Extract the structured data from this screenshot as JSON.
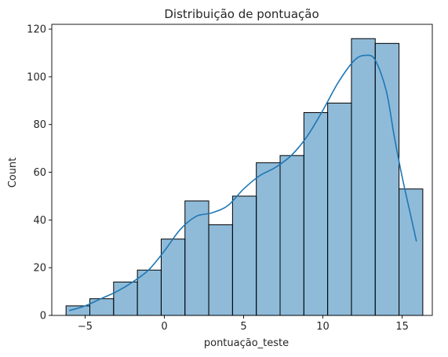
{
  "chart_data": {
    "type": "bar",
    "title": "Distribuição de pontuação",
    "xlabel": "pontuação_teste",
    "ylabel": "Count",
    "xlim": [
      -7.1,
      16.9
    ],
    "ylim": [
      0,
      122
    ],
    "xticks": [
      -5,
      0,
      5,
      10,
      15
    ],
    "yticks": [
      0,
      20,
      40,
      60,
      80,
      100,
      120
    ],
    "grid": false,
    "bar_color": "#1f77b4",
    "kde_color": "#1f77b4",
    "bins": [
      {
        "x0": -6.2,
        "x1": -4.7,
        "count": 4
      },
      {
        "x0": -4.7,
        "x1": -3.2,
        "count": 7
      },
      {
        "x0": -3.2,
        "x1": -1.7,
        "count": 14
      },
      {
        "x0": -1.7,
        "x1": -0.2,
        "count": 19
      },
      {
        "x0": -0.2,
        "x1": 1.3,
        "count": 32
      },
      {
        "x0": 1.3,
        "x1": 2.8,
        "count": 48
      },
      {
        "x0": 2.8,
        "x1": 4.3,
        "count": 38
      },
      {
        "x0": 4.3,
        "x1": 5.8,
        "count": 50
      },
      {
        "x0": 5.8,
        "x1": 7.3,
        "count": 64
      },
      {
        "x0": 7.3,
        "x1": 8.8,
        "count": 67
      },
      {
        "x0": 8.8,
        "x1": 10.3,
        "count": 85
      },
      {
        "x0": 10.3,
        "x1": 11.8,
        "count": 89
      },
      {
        "x0": 11.8,
        "x1": 13.3,
        "count": 116
      },
      {
        "x0": 13.3,
        "x1": 14.8,
        "count": 114
      },
      {
        "x0": 14.8,
        "x1": 16.3,
        "count": 53
      }
    ],
    "kde": [
      [
        -6.0,
        2
      ],
      [
        -5.0,
        4
      ],
      [
        -4.0,
        7
      ],
      [
        -3.0,
        10
      ],
      [
        -2.0,
        14
      ],
      [
        -1.0,
        19
      ],
      [
        0.0,
        27
      ],
      [
        1.0,
        36
      ],
      [
        2.0,
        41.5
      ],
      [
        3.0,
        43
      ],
      [
        4.0,
        46
      ],
      [
        5.0,
        53
      ],
      [
        6.0,
        58.5
      ],
      [
        7.0,
        62
      ],
      [
        8.0,
        67
      ],
      [
        9.0,
        75
      ],
      [
        10.0,
        86
      ],
      [
        11.0,
        98
      ],
      [
        12.0,
        107
      ],
      [
        12.7,
        109
      ],
      [
        13.3,
        107
      ],
      [
        14.0,
        94
      ],
      [
        14.5,
        75
      ],
      [
        15.0,
        58
      ],
      [
        15.5,
        43
      ],
      [
        15.9,
        31
      ]
    ]
  }
}
